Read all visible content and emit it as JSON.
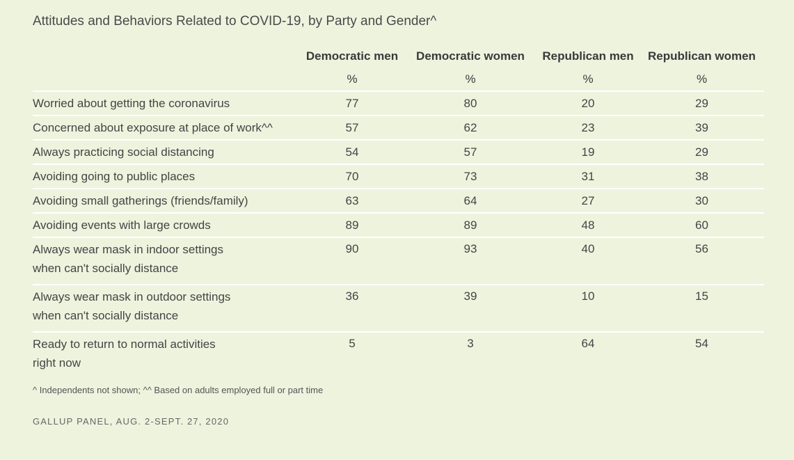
{
  "title": "Attitudes and Behaviors Related to COVID-19, by Party and Gender^",
  "columns": [
    "Democratic men",
    "Democratic women",
    "Republican men",
    "Republican women"
  ],
  "unit": "%",
  "rows": [
    {
      "label_lines": [
        "Worried about getting the coronavirus"
      ],
      "values": [
        "77",
        "80",
        "20",
        "29"
      ]
    },
    {
      "label_lines": [
        "Concerned about exposure at place of work^^"
      ],
      "values": [
        "57",
        "62",
        "23",
        "39"
      ]
    },
    {
      "label_lines": [
        "Always practicing social distancing"
      ],
      "values": [
        "54",
        "57",
        "19",
        "29"
      ]
    },
    {
      "label_lines": [
        "Avoiding going to public places"
      ],
      "values": [
        "70",
        "73",
        "31",
        "38"
      ]
    },
    {
      "label_lines": [
        "Avoiding small gatherings (friends/family)"
      ],
      "values": [
        "63",
        "64",
        "27",
        "30"
      ]
    },
    {
      "label_lines": [
        "Avoiding events with large crowds"
      ],
      "values": [
        "89",
        "89",
        "48",
        "60"
      ]
    },
    {
      "label_lines": [
        "Always wear mask in indoor settings",
        "when can't socially distance"
      ],
      "values": [
        "90",
        "93",
        "40",
        "56"
      ]
    },
    {
      "label_lines": [
        "Always wear mask in outdoor settings",
        "when can't socially distance"
      ],
      "values": [
        "36",
        "39",
        "10",
        "15"
      ]
    },
    {
      "label_lines": [
        "Ready to return to normal activities",
        "right now"
      ],
      "values": [
        "5",
        "3",
        "64",
        "54"
      ]
    }
  ],
  "footnote": "^ Independents not shown; ^^ Based on adults employed full or part time",
  "source": "GALLUP PANEL, AUG. 2-SEPT. 27, 2020",
  "colors": {
    "background": "#eef3de",
    "row_divider": "#ffffff",
    "text": "#333333"
  }
}
